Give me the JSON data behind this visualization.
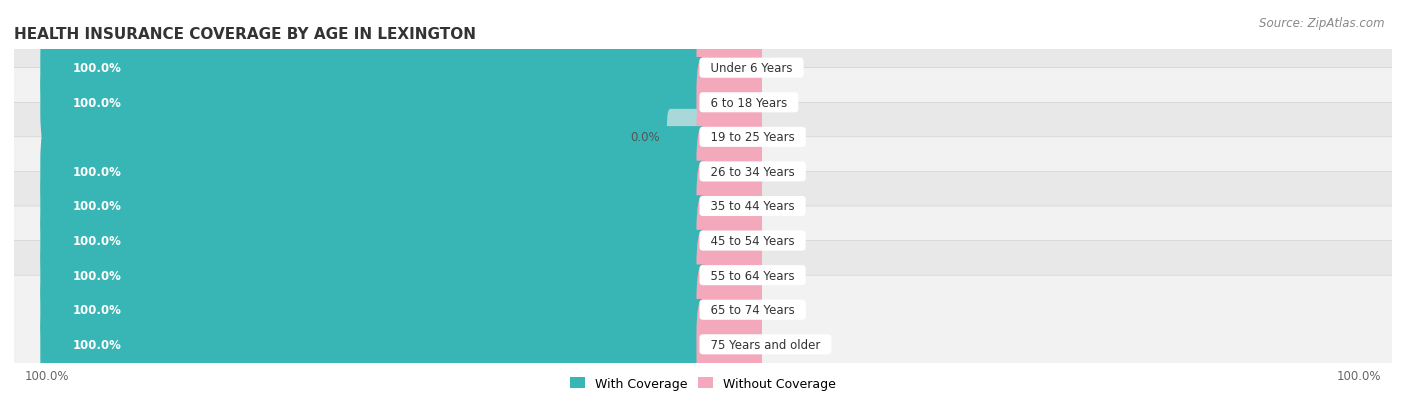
{
  "title": "HEALTH INSURANCE COVERAGE BY AGE IN LEXINGTON",
  "source": "Source: ZipAtlas.com",
  "categories": [
    "Under 6 Years",
    "6 to 18 Years",
    "19 to 25 Years",
    "26 to 34 Years",
    "35 to 44 Years",
    "45 to 54 Years",
    "55 to 64 Years",
    "65 to 74 Years",
    "75 Years and older"
  ],
  "with_coverage": [
    100.0,
    100.0,
    0.0,
    100.0,
    100.0,
    100.0,
    100.0,
    100.0,
    100.0
  ],
  "without_coverage": [
    0.0,
    0.0,
    0.0,
    0.0,
    0.0,
    0.0,
    0.0,
    0.0,
    0.0
  ],
  "with_coverage_color": "#38b5b5",
  "without_coverage_color": "#f4a8bc",
  "with_coverage_color_light": "#a8d8d8",
  "with_coverage_label": "With Coverage",
  "without_coverage_label": "Without Coverage",
  "row_colors": [
    "#f2f2f2",
    "#e8e8e8"
  ],
  "title_fontsize": 11,
  "source_fontsize": 8.5,
  "bar_label_fontsize": 8.5,
  "category_label_fontsize": 8.5,
  "legend_fontsize": 9,
  "axis_label_fontsize": 8.5,
  "x_max": 100,
  "pink_min_display": 8,
  "teal_min_display": 5,
  "figsize": [
    14.06,
    4.14
  ],
  "dpi": 100
}
